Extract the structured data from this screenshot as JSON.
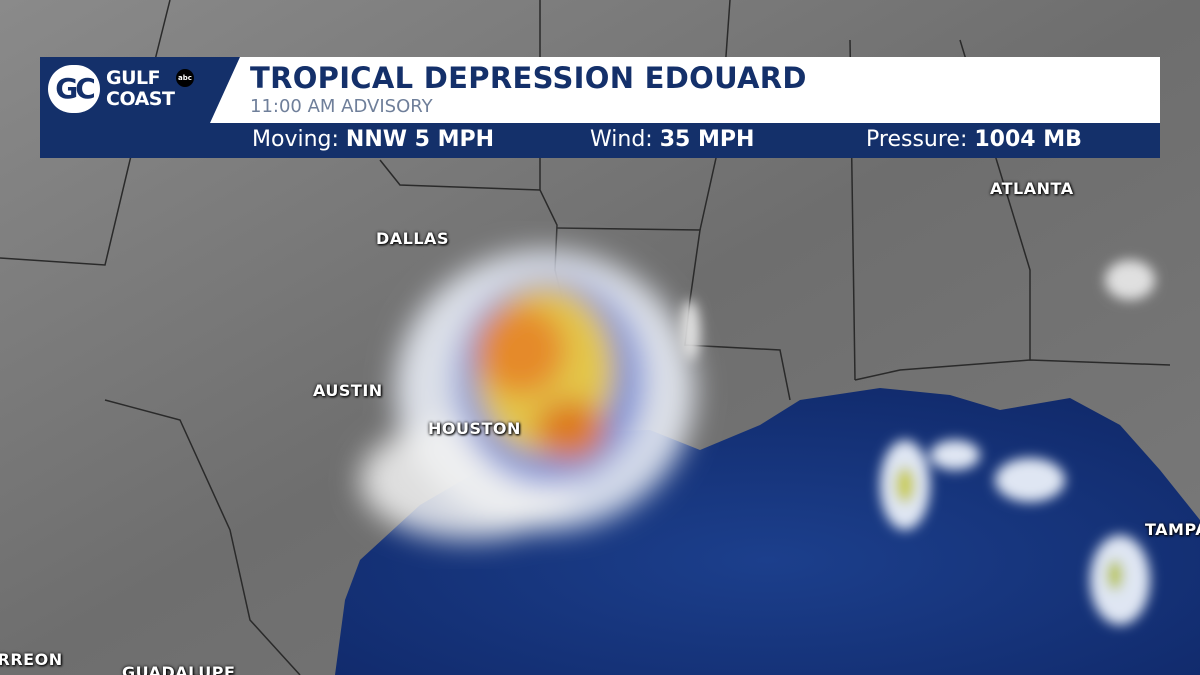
{
  "logo": {
    "mark": "GC",
    "line1": "GULF",
    "line2": "COAST",
    "network": "abc"
  },
  "header": {
    "title": "TROPICAL DEPRESSION EDOUARD",
    "subtitle": "11:00 AM ADVISORY"
  },
  "stats": [
    {
      "label": "Moving:",
      "value": "NNW 5 MPH"
    },
    {
      "label": "Wind:",
      "value": "35 MPH"
    },
    {
      "label": "Pressure:",
      "value": "1004 MB"
    }
  ],
  "cities": [
    "DALLAS",
    "AUSTIN",
    "HOUSTON",
    "ATLANTA",
    "TAMPA",
    "TORREON",
    "GUADALUPE"
  ]
}
